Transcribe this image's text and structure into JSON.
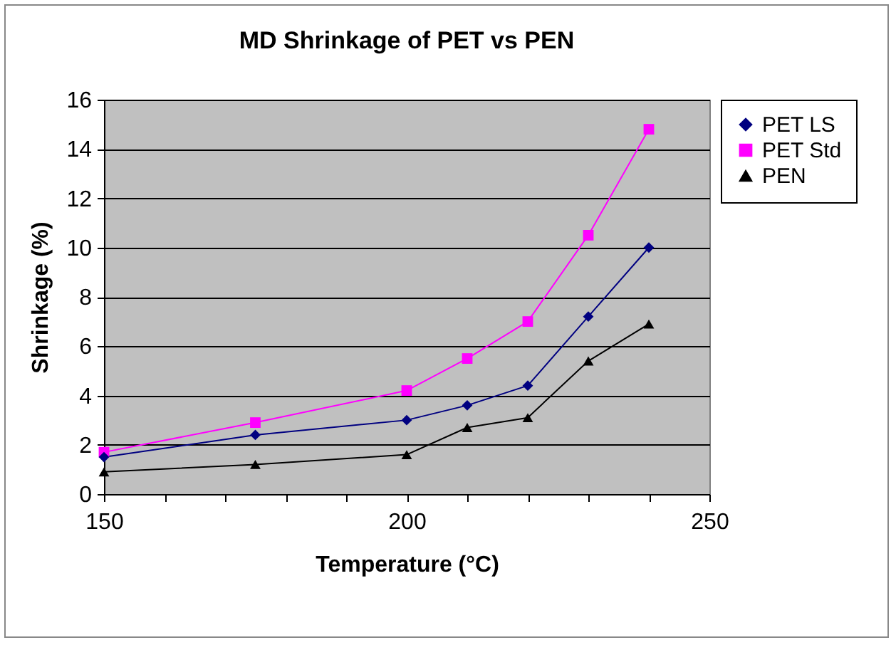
{
  "chart_data": {
    "type": "line",
    "title": "MD Shrinkage of PET vs PEN",
    "xlabel": "Temperature (°C)",
    "ylabel": "Shrinkage (%)",
    "x": [
      150,
      175,
      200,
      210,
      220,
      230,
      240
    ],
    "series": [
      {
        "name": "PET LS",
        "color": "#000080",
        "marker": "diamond",
        "values": [
          1.5,
          2.4,
          3.0,
          3.6,
          4.4,
          7.2,
          10.0
        ]
      },
      {
        "name": "PET Std",
        "color": "#ff00ff",
        "marker": "square",
        "values": [
          1.7,
          2.9,
          4.2,
          5.5,
          7.0,
          10.5,
          14.8
        ]
      },
      {
        "name": "PEN",
        "color": "#000000",
        "marker": "triangle",
        "values": [
          0.9,
          1.2,
          1.6,
          2.7,
          3.1,
          5.4,
          6.9
        ]
      }
    ],
    "xlim": [
      150,
      250
    ],
    "xticks": [
      150,
      {
        "value": 160,
        "label": null
      },
      {
        "value": 170,
        "label": null
      },
      {
        "value": 180,
        "label": null
      },
      {
        "value": 190,
        "label": null
      },
      200,
      {
        "value": 210,
        "label": null
      },
      {
        "value": 220,
        "label": null
      },
      {
        "value": 230,
        "label": null
      },
      {
        "value": 240,
        "label": null
      },
      250
    ],
    "ylim": [
      0,
      16
    ],
    "yticks": [
      0,
      2,
      4,
      6,
      8,
      10,
      12,
      14,
      16
    ],
    "grid": "y",
    "legend": "right"
  }
}
